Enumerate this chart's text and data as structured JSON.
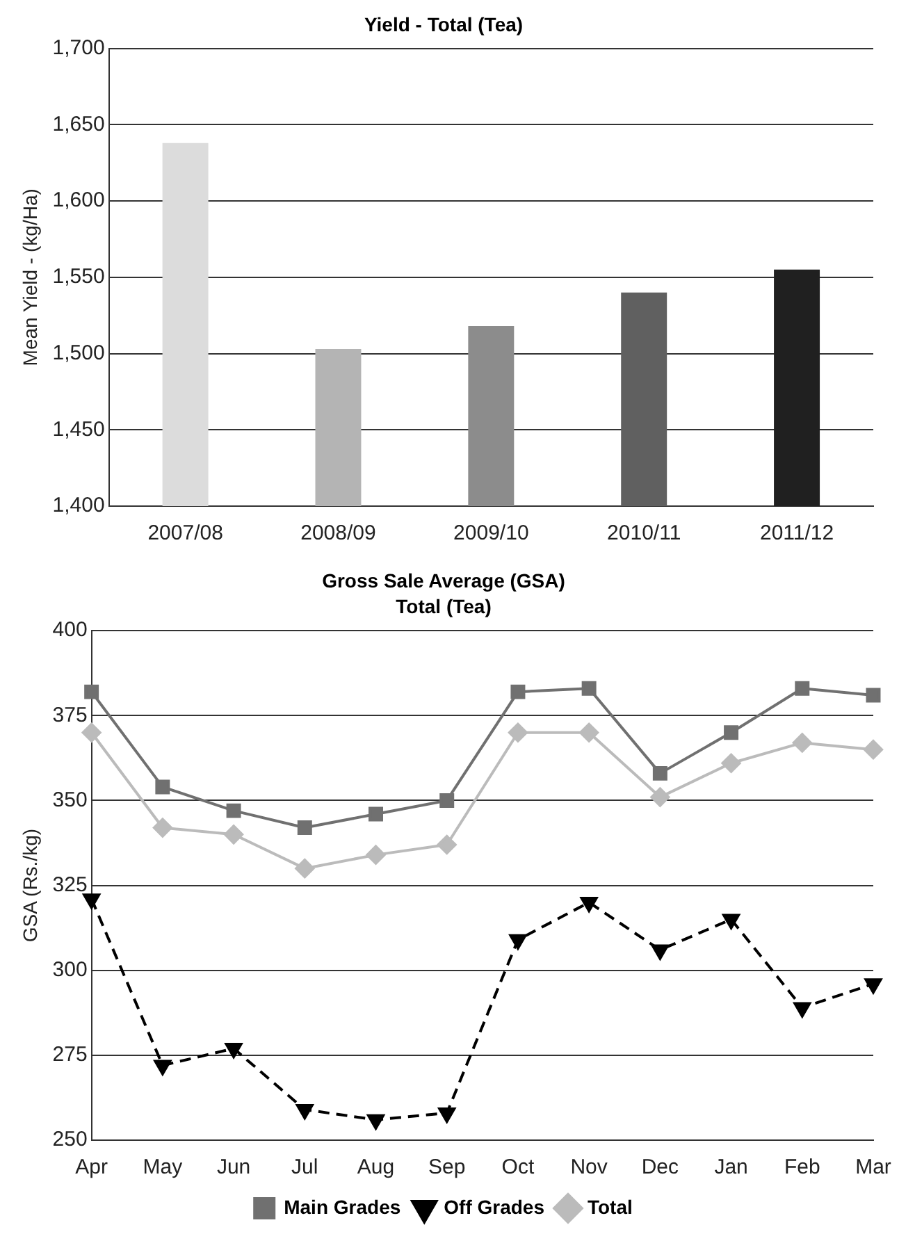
{
  "chart_data": [
    {
      "type": "bar",
      "title": "Yield - Total (Tea)",
      "ylabel": "Mean Yield - (kg/Ha)",
      "categories": [
        "2007/08",
        "2008/09",
        "2009/10",
        "2010/11",
        "2011/12"
      ],
      "values": [
        1638,
        1503,
        1518,
        1540,
        1555
      ],
      "colors": [
        "#dcdcdc",
        "#b4b4b4",
        "#8c8c8c",
        "#606060",
        "#202020"
      ],
      "ylim": [
        1400,
        1700
      ],
      "yticks": [
        {
          "value": 1400,
          "label": "1,400"
        },
        {
          "value": 1450,
          "label": "1,450"
        },
        {
          "value": 1500,
          "label": "1,500"
        },
        {
          "value": 1550,
          "label": "1,550"
        },
        {
          "value": 1600,
          "label": "1,600"
        },
        {
          "value": 1650,
          "label": "1,650"
        },
        {
          "value": 1700,
          "label": "1,700"
        }
      ],
      "grid": "y",
      "legend": false
    },
    {
      "type": "line",
      "title": "Gross Sale Average (GSA)",
      "subtitle": "Total (Tea)",
      "ylabel": "GSA (Rs./kg)",
      "categories": [
        "Apr",
        "May",
        "Jun",
        "Jul",
        "Aug",
        "Sep",
        "Oct",
        "Nov",
        "Dec",
        "Jan",
        "Feb",
        "Mar"
      ],
      "series": [
        {
          "name": "Main Grades",
          "color": "#707070",
          "marker": "square",
          "line_style": "solid",
          "values": [
            382,
            354,
            347,
            342,
            346,
            350,
            382,
            383,
            358,
            370,
            383,
            381
          ]
        },
        {
          "name": "Off Grades",
          "color": "#000000",
          "marker": "triangle",
          "line_style": "dashed",
          "values": [
            321,
            272,
            277,
            259,
            256,
            258,
            309,
            320,
            306,
            315,
            289,
            296
          ]
        },
        {
          "name": "Total",
          "color": "#bbbbbb",
          "marker": "diamond",
          "line_style": "solid",
          "values": [
            370,
            342,
            340,
            330,
            334,
            337,
            370,
            370,
            351,
            361,
            367,
            365
          ]
        }
      ],
      "ylim": [
        250,
        400
      ],
      "yticks": [
        250,
        275,
        300,
        325,
        350,
        375,
        400
      ],
      "grid": "y",
      "legend": "bottom"
    }
  ]
}
